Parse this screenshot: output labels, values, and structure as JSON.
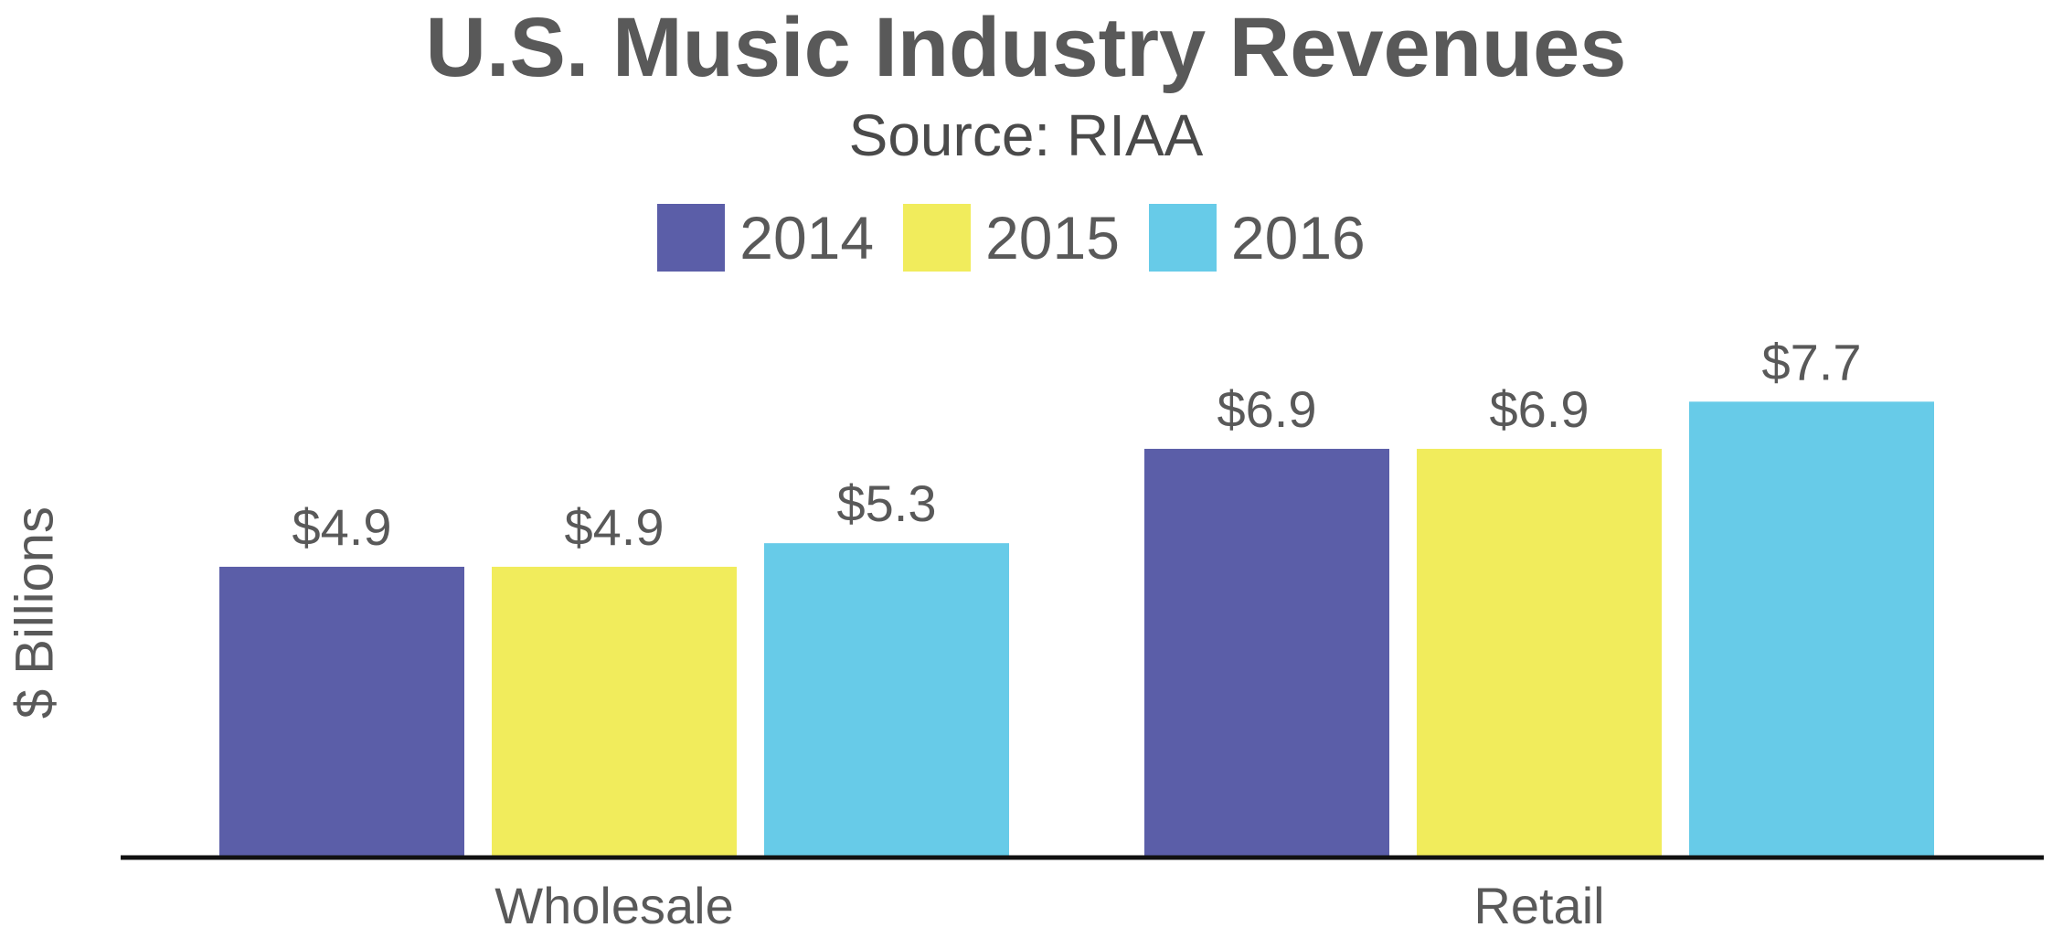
{
  "chart_data": {
    "type": "bar",
    "title": "U.S. Music Industry Revenues",
    "subtitle": "Source: RIAA",
    "xlabel": "",
    "ylabel": "$ Billions",
    "categories": [
      "Wholesale",
      "Retail"
    ],
    "series": [
      {
        "name": "2014",
        "color": "#5b5ea8",
        "values": [
          4.9,
          6.9
        ],
        "labels": [
          "$4.9",
          "$6.9"
        ]
      },
      {
        "name": "2015",
        "color": "#f1ec5c",
        "values": [
          4.9,
          6.9
        ],
        "labels": [
          "$4.9",
          "$6.9"
        ]
      },
      {
        "name": "2016",
        "color": "#67cbe8",
        "values": [
          5.3,
          7.7
        ],
        "labels": [
          "$5.3",
          "$7.7"
        ]
      }
    ],
    "ylim": [
      0,
      10
    ],
    "grid": false,
    "legend_position": "top-center"
  }
}
